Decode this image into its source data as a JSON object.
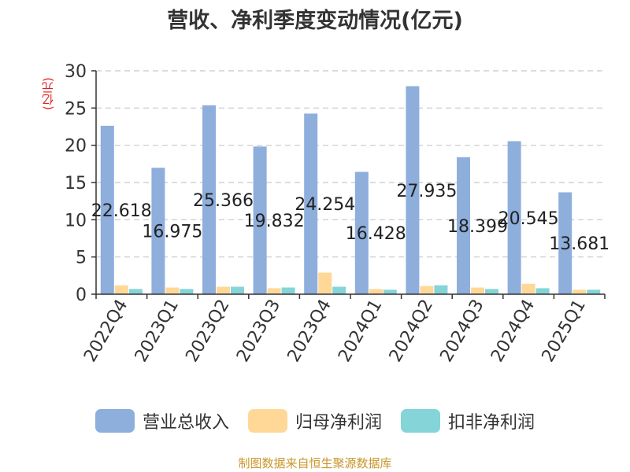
{
  "title": "营收、净利季度变动情况(亿元)",
  "unit": "(亿元)",
  "source": "制图数据来自恒生聚源数据库",
  "legend": [
    {
      "label": "营业总收入",
      "color": "#8eaedc"
    },
    {
      "label": "归母净利润",
      "color": "#ffd898"
    },
    {
      "label": "扣非净利润",
      "color": "#84d4d8"
    }
  ],
  "chart_data": {
    "type": "bar",
    "categories": [
      "2022Q4",
      "2023Q1",
      "2023Q2",
      "2023Q3",
      "2023Q4",
      "2024Q1",
      "2024Q2",
      "2024Q3",
      "2024Q4",
      "2025Q1"
    ],
    "series": [
      {
        "name": "营业总收入",
        "color": "#8eaedc",
        "values": [
          22.618,
          16.975,
          25.366,
          19.832,
          24.254,
          16.428,
          27.935,
          18.399,
          20.545,
          13.681
        ]
      },
      {
        "name": "归母净利润",
        "color": "#ffd898",
        "values": [
          1.2,
          0.9,
          1.0,
          0.8,
          2.9,
          0.7,
          1.1,
          0.9,
          1.4,
          0.6
        ]
      },
      {
        "name": "扣非净利润",
        "color": "#84d4d8",
        "values": [
          0.7,
          0.7,
          1.0,
          0.9,
          1.0,
          0.6,
          1.2,
          0.7,
          0.8,
          0.6
        ]
      }
    ],
    "data_labels": [
      "22.618",
      "16.975",
      "25.366",
      "19.832",
      "24.254",
      "16.428",
      "27.935",
      "18.399",
      "20.545",
      "13.681"
    ],
    "yticks": [
      0,
      5,
      10,
      15,
      20,
      25,
      30
    ],
    "ylim": [
      0,
      30
    ],
    "grid": true
  }
}
